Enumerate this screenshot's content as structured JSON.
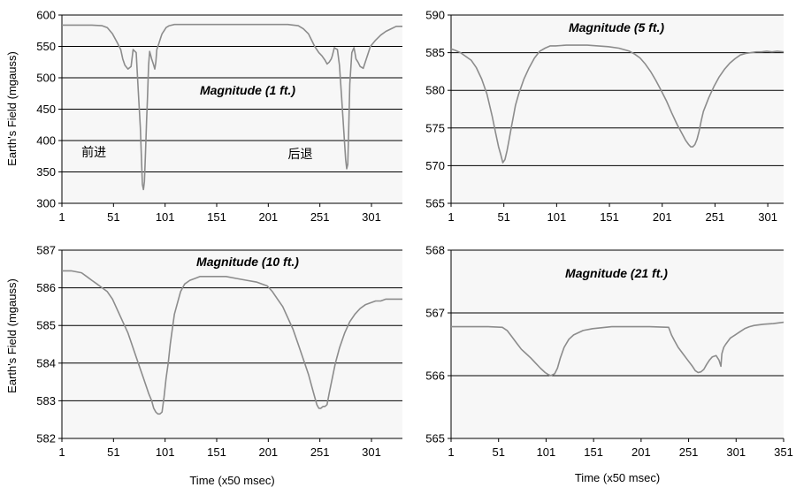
{
  "colors": {
    "plot_background": "#f7f7f7",
    "grid_line": "#000000",
    "series_line": "#8c8c8c"
  },
  "chart_data": [
    {
      "type": "line",
      "title": "Magnitude (1 ft.)",
      "xlabel": "",
      "ylabel": "Earth's Field (mgauss)",
      "xlim": [
        1,
        331
      ],
      "ylim": [
        300,
        600
      ],
      "x_ticks": [
        1,
        51,
        101,
        151,
        201,
        251,
        301
      ],
      "y_ticks": [
        300,
        350,
        400,
        450,
        500,
        550,
        600
      ],
      "grid": "horizontal",
      "annotations": [
        {
          "text": "前进",
          "x": 20,
          "y": 375
        },
        {
          "text": "后退",
          "x": 220,
          "y": 372
        }
      ],
      "series": [
        {
          "x": [
            1,
            10,
            20,
            30,
            40,
            45,
            50,
            55,
            58,
            60,
            62,
            65,
            68,
            70,
            73,
            75,
            77,
            79,
            80,
            81,
            82,
            83,
            84,
            85,
            86,
            88,
            90,
            91,
            92,
            93,
            95,
            97,
            98,
            100,
            102,
            105,
            110,
            120,
            150,
            180,
            200,
            220,
            230,
            235,
            240,
            243,
            246,
            250,
            253,
            256,
            258,
            260,
            262,
            263,
            265,
            268,
            270,
            272,
            274,
            276,
            277,
            278,
            279,
            280,
            282,
            284,
            285,
            286,
            288,
            290,
            293,
            295,
            298,
            300,
            305,
            310,
            315,
            320,
            325,
            331
          ],
          "y": [
            584,
            584,
            584,
            584,
            583,
            580,
            570,
            555,
            545,
            530,
            520,
            514,
            518,
            545,
            540,
            480,
            420,
            330,
            322,
            335,
            380,
            430,
            470,
            520,
            542,
            530,
            520,
            514,
            525,
            545,
            555,
            565,
            570,
            575,
            580,
            583,
            585,
            585,
            585,
            585,
            585,
            585,
            583,
            578,
            570,
            560,
            550,
            540,
            535,
            528,
            522,
            525,
            530,
            535,
            548,
            545,
            520,
            470,
            420,
            370,
            355,
            362,
            420,
            490,
            540,
            548,
            540,
            530,
            525,
            518,
            515,
            525,
            540,
            550,
            560,
            568,
            574,
            578,
            582,
            582
          ]
        }
      ]
    },
    {
      "type": "line",
      "title": "Magnitude (5 ft.)",
      "xlabel": "",
      "ylabel": "",
      "xlim": [
        1,
        316
      ],
      "ylim": [
        565,
        590
      ],
      "x_ticks": [
        1,
        51,
        101,
        151,
        201,
        251,
        301
      ],
      "y_ticks": [
        565,
        570,
        575,
        580,
        585,
        590
      ],
      "grid": "horizontal",
      "series": [
        {
          "x": [
            1,
            5,
            10,
            15,
            20,
            25,
            30,
            35,
            40,
            43,
            46,
            48,
            50,
            52,
            54,
            56,
            58,
            60,
            62,
            65,
            70,
            75,
            80,
            85,
            90,
            95,
            100,
            110,
            120,
            130,
            140,
            150,
            160,
            170,
            175,
            180,
            185,
            190,
            195,
            200,
            205,
            210,
            215,
            220,
            223,
            226,
            228,
            230,
            232,
            234,
            236,
            238,
            240,
            245,
            250,
            255,
            260,
            265,
            270,
            275,
            280,
            285,
            290,
            295,
            300,
            305,
            310,
            316
          ],
          "y": [
            585.5,
            585.3,
            585,
            584.5,
            584,
            583,
            581.5,
            579.5,
            576.5,
            574.5,
            572.5,
            571.5,
            570.4,
            570.8,
            572,
            573.5,
            575,
            576.5,
            578,
            579.5,
            581.5,
            583,
            584.3,
            585.2,
            585.6,
            585.9,
            585.9,
            586,
            586,
            586,
            585.9,
            585.8,
            585.6,
            585.2,
            584.8,
            584.3,
            583.5,
            582.5,
            581.3,
            580,
            578.6,
            577,
            575.5,
            574.2,
            573.4,
            572.8,
            572.5,
            572.5,
            572.8,
            573.5,
            574.6,
            576,
            577.2,
            579,
            580.5,
            581.8,
            582.8,
            583.6,
            584.2,
            584.7,
            584.9,
            585,
            585.1,
            585.1,
            585.2,
            585.1,
            585.2,
            585.1
          ]
        }
      ]
    },
    {
      "type": "line",
      "title": "Magnitude (10 ft.)",
      "xlabel": "Time (x50 msec)",
      "ylabel": "Earth's Field (mgauss)",
      "xlim": [
        1,
        331
      ],
      "ylim": [
        582,
        587
      ],
      "x_ticks": [
        1,
        51,
        101,
        151,
        201,
        251,
        301
      ],
      "y_ticks": [
        582,
        583,
        584,
        585,
        586,
        587
      ],
      "grid": "horizontal",
      "series": [
        {
          "x": [
            1,
            10,
            20,
            25,
            30,
            35,
            40,
            45,
            50,
            55,
            60,
            65,
            70,
            75,
            80,
            85,
            88,
            90,
            92,
            94,
            96,
            98,
            100,
            102,
            104,
            106,
            108,
            110,
            113,
            116,
            120,
            125,
            130,
            135,
            140,
            150,
            160,
            170,
            180,
            190,
            200,
            205,
            210,
            215,
            220,
            225,
            230,
            235,
            240,
            243,
            246,
            248,
            250,
            252,
            254,
            256,
            258,
            260,
            263,
            266,
            270,
            275,
            280,
            285,
            290,
            295,
            300,
            305,
            310,
            315,
            320,
            325,
            331
          ],
          "y": [
            586.45,
            586.45,
            586.4,
            586.3,
            586.2,
            586.1,
            586.0,
            585.9,
            585.7,
            585.4,
            585.1,
            584.8,
            584.4,
            584,
            583.6,
            583.2,
            583,
            582.8,
            582.7,
            582.65,
            582.65,
            582.7,
            583.1,
            583.6,
            584,
            584.5,
            584.9,
            585.3,
            585.6,
            585.9,
            586.1,
            586.2,
            586.25,
            586.3,
            586.3,
            586.3,
            586.3,
            586.25,
            586.2,
            586.15,
            586.05,
            585.9,
            585.7,
            585.5,
            585.2,
            584.9,
            584.5,
            584.1,
            583.7,
            583.4,
            583.1,
            582.9,
            582.8,
            582.8,
            582.85,
            582.85,
            582.9,
            583.2,
            583.6,
            584,
            584.4,
            584.8,
            585.1,
            585.3,
            585.45,
            585.55,
            585.6,
            585.65,
            585.65,
            585.7,
            585.7,
            585.7,
            585.7
          ]
        }
      ]
    },
    {
      "type": "line",
      "title": "Magnitude (21 ft.)",
      "xlabel": "Time (x50 msec)",
      "ylabel": "",
      "xlim": [
        1,
        351
      ],
      "ylim": [
        565,
        568
      ],
      "x_ticks": [
        1,
        51,
        101,
        151,
        201,
        251,
        301,
        351
      ],
      "y_ticks": [
        565,
        566,
        567,
        568
      ],
      "grid": "horizontal",
      "series": [
        {
          "x": [
            1,
            20,
            40,
            55,
            60,
            65,
            70,
            75,
            80,
            85,
            90,
            95,
            100,
            103,
            106,
            110,
            113,
            116,
            120,
            125,
            130,
            140,
            150,
            170,
            190,
            210,
            230,
            233,
            236,
            240,
            245,
            250,
            255,
            258,
            261,
            264,
            267,
            270,
            273,
            276,
            280,
            283,
            285,
            286,
            288,
            290,
            295,
            300,
            305,
            310,
            315,
            320,
            330,
            340,
            351
          ],
          "y": [
            566.78,
            566.78,
            566.78,
            566.77,
            566.72,
            566.62,
            566.52,
            566.42,
            566.35,
            566.28,
            566.2,
            566.12,
            566.05,
            566.02,
            566.0,
            566.03,
            566.12,
            566.28,
            566.45,
            566.58,
            566.65,
            566.72,
            566.75,
            566.78,
            566.78,
            566.78,
            566.77,
            566.65,
            566.56,
            566.45,
            566.35,
            566.25,
            566.15,
            566.08,
            566.05,
            566.06,
            566.1,
            566.18,
            566.25,
            566.3,
            566.32,
            566.25,
            566.15,
            566.35,
            566.45,
            566.5,
            566.6,
            566.65,
            566.7,
            566.75,
            566.78,
            566.8,
            566.82,
            566.83,
            566.85
          ]
        }
      ]
    }
  ]
}
